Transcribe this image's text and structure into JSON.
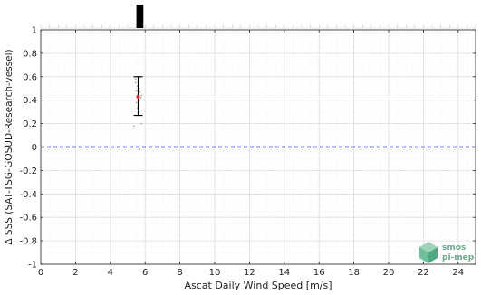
{
  "chart_data": {
    "type": "scatter",
    "xlabel": "Ascat Daily Wind Speed [m/s]",
    "ylabel": "Δ SSS (SAT-TSG-GOSUD-Research-vessel)",
    "xlim": [
      0,
      25
    ],
    "ylim": [
      -1,
      1
    ],
    "x_ticks": [
      "0",
      "2",
      "4",
      "6",
      "8",
      "10",
      "12",
      "14",
      "16",
      "18",
      "20",
      "22",
      "24"
    ],
    "y_ticks": [
      "1",
      "0.8",
      "0.6",
      "0.4",
      "0.2",
      "0",
      "-0.2",
      "-0.4",
      "-0.6",
      "-0.8",
      "-1"
    ],
    "grid": true,
    "reference_line": {
      "y": 0,
      "style": "dashed",
      "color": "#1a1acc"
    },
    "histogram": {
      "bins": [
        {
          "x_start": 5.5,
          "x_end": 5.9,
          "relative_height": 1.0
        }
      ]
    },
    "mean_point": {
      "x": 5.6,
      "y": 0.43,
      "color": "#dd2222"
    },
    "error_bar": {
      "x": 5.6,
      "low": 0.27,
      "high": 0.6
    },
    "scatter_points": [
      {
        "x": 5.45,
        "y": 0.55
      },
      {
        "x": 5.5,
        "y": 0.48
      },
      {
        "x": 5.55,
        "y": 0.52
      },
      {
        "x": 5.6,
        "y": 0.45
      },
      {
        "x": 5.65,
        "y": 0.5
      },
      {
        "x": 5.7,
        "y": 0.47
      },
      {
        "x": 5.75,
        "y": 0.42
      },
      {
        "x": 5.8,
        "y": 0.44
      },
      {
        "x": 5.5,
        "y": 0.38
      },
      {
        "x": 5.6,
        "y": 0.36
      },
      {
        "x": 5.7,
        "y": 0.4
      },
      {
        "x": 5.55,
        "y": 0.33
      },
      {
        "x": 5.45,
        "y": 0.58
      },
      {
        "x": 5.65,
        "y": 0.3
      },
      {
        "x": 5.35,
        "y": 0.18
      },
      {
        "x": 5.8,
        "y": 0.2
      },
      {
        "x": 5.7,
        "y": -0.02
      }
    ]
  },
  "logo": {
    "line1": "smos",
    "line2": "pi-mep"
  },
  "colors": {
    "background": "#ffffff",
    "grid": "#e4e4e4",
    "axis": "#222222",
    "scatter": "#9a9a9a"
  }
}
